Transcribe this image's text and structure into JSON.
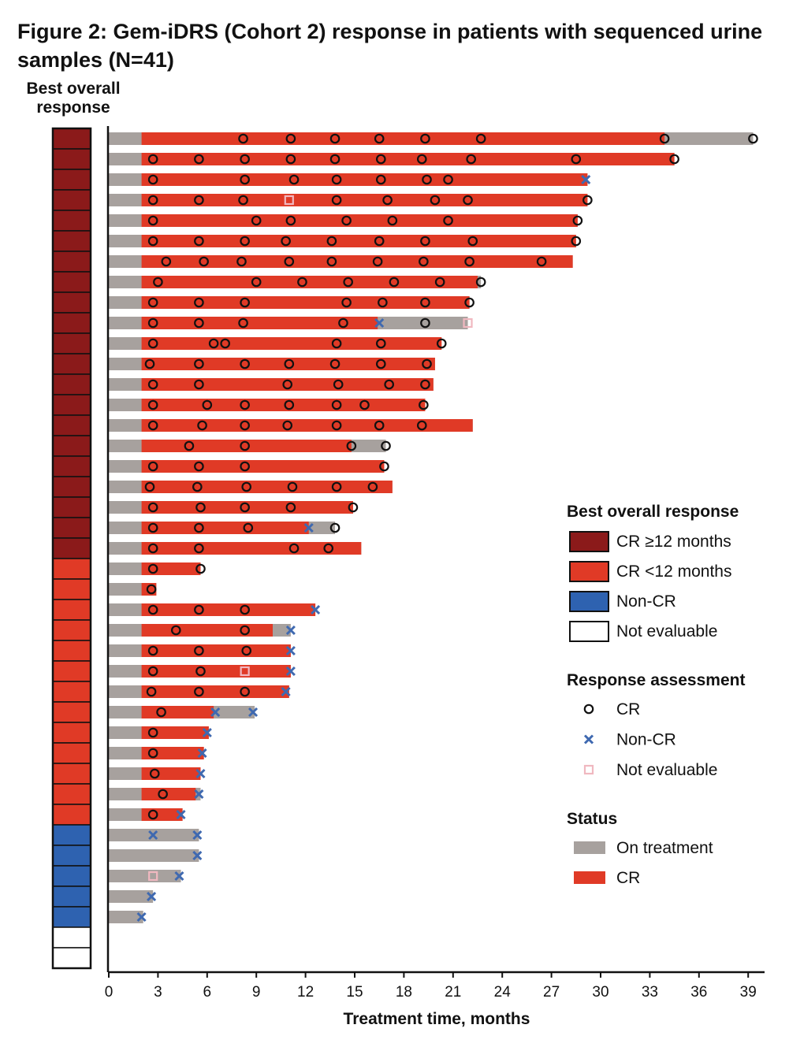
{
  "title": "Figure 2: Gem-iDRS (Cohort 2) response in patients with sequenced urine samples (N=41)",
  "bor_heading": [
    "Best overall",
    "response"
  ],
  "colors": {
    "cr_12plus": "#8b1a1a",
    "cr_under12": "#e03a26",
    "non_cr": "#2e62b0",
    "not_evaluable": "#ffffff",
    "on_treatment": "#a7a19e",
    "cr_status": "#e03a26",
    "marker_cr": "#111111",
    "marker_noncr": "#3f69b0",
    "marker_ne": "#f0b8c0"
  },
  "chart_data": {
    "type": "swimmer",
    "title": "Figure 2: Gem-iDRS (Cohort 2) response in patients with sequenced urine samples (N=41)",
    "xlabel": "Treatment time, months",
    "xlim": [
      0,
      40
    ],
    "xticks": [
      0,
      3,
      6,
      9,
      12,
      15,
      18,
      21,
      24,
      27,
      30,
      33,
      36,
      39
    ],
    "legend": {
      "best_overall_response": {
        "title": "Best overall response",
        "items": [
          {
            "label": "CR ≥12 months",
            "color": "#8b1a1a"
          },
          {
            "label": "CR <12 months",
            "color": "#e03a26"
          },
          {
            "label": "Non-CR",
            "color": "#2e62b0"
          },
          {
            "label": "Not evaluable",
            "color": "#ffffff"
          }
        ]
      },
      "response_assessment": {
        "title": "Response assessment",
        "items": [
          {
            "label": "CR",
            "marker": "circle"
          },
          {
            "label": "Non-CR",
            "marker": "x"
          },
          {
            "label": "Not evaluable",
            "marker": "square"
          }
        ]
      },
      "status": {
        "title": "Status",
        "items": [
          {
            "label": "On treatment",
            "color": "#a7a19e"
          },
          {
            "label": "CR",
            "color": "#e03a26"
          }
        ]
      },
      "placement": "right"
    },
    "patients": [
      {
        "bor": "CR12",
        "duration": 39.3,
        "cr": [
          2.0,
          33.9
        ],
        "markers": [
          [
            "cr",
            8.2
          ],
          [
            "cr",
            11.1
          ],
          [
            "cr",
            13.8
          ],
          [
            "cr",
            16.5
          ],
          [
            "cr",
            19.3
          ],
          [
            "cr",
            22.7
          ],
          [
            "cr",
            33.9
          ],
          [
            "cr",
            39.3
          ]
        ]
      },
      {
        "bor": "CR12",
        "duration": 34.5,
        "cr": [
          2.0,
          34.5
        ],
        "markers": [
          [
            "cr",
            2.7
          ],
          [
            "cr",
            5.5
          ],
          [
            "cr",
            8.3
          ],
          [
            "cr",
            11.1
          ],
          [
            "cr",
            13.8
          ],
          [
            "cr",
            16.6
          ],
          [
            "cr",
            19.1
          ],
          [
            "cr",
            22.1
          ],
          [
            "cr",
            28.5
          ],
          [
            "cr",
            34.5
          ]
        ]
      },
      {
        "bor": "CR12",
        "duration": 29.2,
        "cr": [
          2.0,
          29.2
        ],
        "markers": [
          [
            "cr",
            2.7
          ],
          [
            "cr",
            8.3
          ],
          [
            "cr",
            11.3
          ],
          [
            "cr",
            13.9
          ],
          [
            "cr",
            16.6
          ],
          [
            "cr",
            19.4
          ],
          [
            "cr",
            20.7
          ],
          [
            "x",
            29.1
          ]
        ]
      },
      {
        "bor": "CR12",
        "duration": 29.2,
        "cr": [
          2.0,
          29.2
        ],
        "markers": [
          [
            "cr",
            2.7
          ],
          [
            "cr",
            5.5
          ],
          [
            "cr",
            8.2
          ],
          [
            "sq",
            11.0
          ],
          [
            "cr",
            13.9
          ],
          [
            "cr",
            17.0
          ],
          [
            "cr",
            19.9
          ],
          [
            "cr",
            21.9
          ],
          [
            "cr",
            29.2
          ]
        ]
      },
      {
        "bor": "CR12",
        "duration": 28.6,
        "cr": [
          2.0,
          28.6
        ],
        "markers": [
          [
            "cr",
            2.7
          ],
          [
            "cr",
            9.0
          ],
          [
            "cr",
            11.1
          ],
          [
            "cr",
            14.5
          ],
          [
            "cr",
            17.3
          ],
          [
            "cr",
            20.7
          ],
          [
            "cr",
            28.6
          ]
        ]
      },
      {
        "bor": "CR12",
        "duration": 28.5,
        "cr": [
          2.0,
          28.5
        ],
        "markers": [
          [
            "cr",
            2.7
          ],
          [
            "cr",
            5.5
          ],
          [
            "cr",
            8.3
          ],
          [
            "cr",
            10.8
          ],
          [
            "cr",
            13.6
          ],
          [
            "cr",
            16.5
          ],
          [
            "cr",
            19.3
          ],
          [
            "cr",
            22.2
          ],
          [
            "cr",
            28.5
          ]
        ]
      },
      {
        "bor": "CR12",
        "duration": 28.3,
        "cr": [
          2.0,
          28.3
        ],
        "markers": [
          [
            "cr",
            3.5
          ],
          [
            "cr",
            5.8
          ],
          [
            "cr",
            8.1
          ],
          [
            "cr",
            11.0
          ],
          [
            "cr",
            13.6
          ],
          [
            "cr",
            16.4
          ],
          [
            "cr",
            19.2
          ],
          [
            "cr",
            22.0
          ],
          [
            "cr",
            26.4
          ]
        ]
      },
      {
        "bor": "CR12",
        "duration": 22.7,
        "cr": [
          2.0,
          22.5
        ],
        "markers": [
          [
            "cr",
            3.0
          ],
          [
            "cr",
            9.0
          ],
          [
            "cr",
            11.8
          ],
          [
            "cr",
            14.6
          ],
          [
            "cr",
            17.4
          ],
          [
            "cr",
            20.2
          ],
          [
            "cr",
            22.7
          ]
        ]
      },
      {
        "bor": "CR12",
        "duration": 22.0,
        "cr": [
          2.0,
          22.0
        ],
        "markers": [
          [
            "cr",
            2.7
          ],
          [
            "cr",
            5.5
          ],
          [
            "cr",
            8.3
          ],
          [
            "cr",
            14.5
          ],
          [
            "cr",
            16.7
          ],
          [
            "cr",
            19.3
          ],
          [
            "cr",
            22.0
          ]
        ]
      },
      {
        "bor": "CR12",
        "duration": 21.9,
        "cr": [
          2.0,
          16.4
        ],
        "markers": [
          [
            "cr",
            2.7
          ],
          [
            "cr",
            5.5
          ],
          [
            "cr",
            8.2
          ],
          [
            "cr",
            14.3
          ],
          [
            "x",
            16.5
          ],
          [
            "cr",
            19.3
          ],
          [
            "sq",
            21.9
          ]
        ]
      },
      {
        "bor": "CR12",
        "duration": 20.3,
        "cr": [
          2.0,
          20.3
        ],
        "markers": [
          [
            "cr",
            2.7
          ],
          [
            "cr",
            6.4
          ],
          [
            "cr",
            7.1
          ],
          [
            "cr",
            13.9
          ],
          [
            "cr",
            16.6
          ],
          [
            "cr",
            20.3
          ]
        ]
      },
      {
        "bor": "CR12",
        "duration": 19.9,
        "cr": [
          2.0,
          19.9
        ],
        "markers": [
          [
            "cr",
            2.5
          ],
          [
            "cr",
            5.5
          ],
          [
            "cr",
            8.3
          ],
          [
            "cr",
            11.0
          ],
          [
            "cr",
            13.8
          ],
          [
            "cr",
            16.6
          ],
          [
            "cr",
            19.4
          ]
        ]
      },
      {
        "bor": "CR12",
        "duration": 19.8,
        "cr": [
          2.0,
          19.8
        ],
        "markers": [
          [
            "cr",
            2.7
          ],
          [
            "cr",
            5.5
          ],
          [
            "cr",
            10.9
          ],
          [
            "cr",
            14.0
          ],
          [
            "cr",
            17.1
          ],
          [
            "cr",
            19.3
          ]
        ]
      },
      {
        "bor": "CR12",
        "duration": 19.3,
        "cr": [
          2.0,
          19.3
        ],
        "markers": [
          [
            "cr",
            2.7
          ],
          [
            "cr",
            6.0
          ],
          [
            "cr",
            8.3
          ],
          [
            "cr",
            11.0
          ],
          [
            "cr",
            13.9
          ],
          [
            "cr",
            15.6
          ],
          [
            "cr",
            19.2
          ]
        ]
      },
      {
        "bor": "CR12",
        "duration": 22.2,
        "cr": [
          2.0,
          22.2
        ],
        "markers": [
          [
            "cr",
            2.7
          ],
          [
            "cr",
            5.7
          ],
          [
            "cr",
            8.3
          ],
          [
            "cr",
            10.9
          ],
          [
            "cr",
            13.9
          ],
          [
            "cr",
            16.5
          ],
          [
            "cr",
            19.1
          ]
        ]
      },
      {
        "bor": "CR12",
        "duration": 16.9,
        "cr": [
          2.0,
          14.8
        ],
        "markers": [
          [
            "cr",
            4.9
          ],
          [
            "cr",
            8.3
          ],
          [
            "cr",
            14.8
          ],
          [
            "cr",
            16.9
          ]
        ]
      },
      {
        "bor": "CR12",
        "duration": 16.8,
        "cr": [
          2.0,
          16.8
        ],
        "markers": [
          [
            "cr",
            2.7
          ],
          [
            "cr",
            5.5
          ],
          [
            "cr",
            8.3
          ],
          [
            "cr",
            16.8
          ]
        ]
      },
      {
        "bor": "CR12",
        "duration": 17.3,
        "cr": [
          2.0,
          17.3
        ],
        "markers": [
          [
            "cr",
            2.5
          ],
          [
            "cr",
            5.4
          ],
          [
            "cr",
            8.4
          ],
          [
            "cr",
            11.2
          ],
          [
            "cr",
            13.9
          ],
          [
            "cr",
            16.1
          ]
        ]
      },
      {
        "bor": "CR12",
        "duration": 14.9,
        "cr": [
          2.0,
          14.9
        ],
        "markers": [
          [
            "cr",
            2.7
          ],
          [
            "cr",
            5.6
          ],
          [
            "cr",
            8.3
          ],
          [
            "cr",
            11.1
          ],
          [
            "cr",
            14.9
          ]
        ]
      },
      {
        "bor": "CR12",
        "duration": 13.8,
        "cr": [
          2.0,
          12.2
        ],
        "markers": [
          [
            "cr",
            2.7
          ],
          [
            "cr",
            5.5
          ],
          [
            "cr",
            8.5
          ],
          [
            "x",
            12.2
          ],
          [
            "cr",
            13.8
          ]
        ]
      },
      {
        "bor": "CR12",
        "duration": 15.4,
        "cr": [
          2.0,
          15.4
        ],
        "markers": [
          [
            "cr",
            2.7
          ],
          [
            "cr",
            5.5
          ],
          [
            "cr",
            11.3
          ],
          [
            "cr",
            13.4
          ]
        ]
      },
      {
        "bor": "CR",
        "duration": 5.6,
        "cr": [
          2.0,
          5.6
        ],
        "markers": [
          [
            "cr",
            2.7
          ],
          [
            "cr",
            5.6
          ]
        ]
      },
      {
        "bor": "CR",
        "duration": 2.9,
        "cr": [
          2.0,
          2.9
        ],
        "markers": [
          [
            "cr",
            2.6
          ]
        ]
      },
      {
        "bor": "CR",
        "duration": 12.6,
        "cr": [
          2.0,
          12.6
        ],
        "markers": [
          [
            "cr",
            2.7
          ],
          [
            "cr",
            5.5
          ],
          [
            "cr",
            8.3
          ],
          [
            "x",
            12.6
          ]
        ]
      },
      {
        "bor": "CR",
        "duration": 11.1,
        "cr": [
          2.0,
          10.0
        ],
        "markers": [
          [
            "cr",
            4.1
          ],
          [
            "cr",
            8.3
          ],
          [
            "x",
            11.1
          ]
        ]
      },
      {
        "bor": "CR",
        "duration": 11.1,
        "cr": [
          2.0,
          11.1
        ],
        "markers": [
          [
            "cr",
            2.7
          ],
          [
            "cr",
            5.5
          ],
          [
            "cr",
            8.4
          ],
          [
            "x",
            11.1
          ]
        ]
      },
      {
        "bor": "CR",
        "duration": 11.1,
        "cr": [
          2.0,
          11.1
        ],
        "markers": [
          [
            "cr",
            2.7
          ],
          [
            "cr",
            5.6
          ],
          [
            "sq",
            8.3
          ],
          [
            "x",
            11.1
          ]
        ]
      },
      {
        "bor": "CR",
        "duration": 11.0,
        "cr": [
          2.0,
          11.0
        ],
        "markers": [
          [
            "cr",
            2.6
          ],
          [
            "cr",
            5.5
          ],
          [
            "cr",
            8.3
          ],
          [
            "x",
            10.8
          ]
        ]
      },
      {
        "bor": "CR",
        "duration": 8.9,
        "cr": [
          2.0,
          6.4
        ],
        "markers": [
          [
            "cr",
            3.2
          ],
          [
            "x",
            6.5
          ],
          [
            "x",
            8.8
          ]
        ]
      },
      {
        "bor": "CR",
        "duration": 6.1,
        "cr": [
          2.0,
          6.1
        ],
        "markers": [
          [
            "cr",
            2.7
          ],
          [
            "x",
            6.0
          ]
        ]
      },
      {
        "bor": "CR",
        "duration": 5.8,
        "cr": [
          2.0,
          5.8
        ],
        "markers": [
          [
            "cr",
            2.7
          ],
          [
            "x",
            5.7
          ]
        ]
      },
      {
        "bor": "CR",
        "duration": 5.6,
        "cr": [
          2.0,
          5.6
        ],
        "markers": [
          [
            "cr",
            2.8
          ],
          [
            "x",
            5.6
          ]
        ]
      },
      {
        "bor": "CR",
        "duration": 5.6,
        "cr": [
          2.0,
          5.3
        ],
        "markers": [
          [
            "cr",
            3.3
          ],
          [
            "x",
            5.5
          ]
        ]
      },
      {
        "bor": "CR",
        "duration": 4.5,
        "cr": [
          2.0,
          4.5
        ],
        "markers": [
          [
            "cr",
            2.7
          ],
          [
            "x",
            4.4
          ]
        ]
      },
      {
        "bor": "NonCR",
        "duration": 5.5,
        "cr": null,
        "markers": [
          [
            "x",
            2.7
          ],
          [
            "x",
            5.4
          ]
        ]
      },
      {
        "bor": "NonCR",
        "duration": 5.5,
        "cr": null,
        "markers": [
          [
            "x",
            5.4
          ]
        ]
      },
      {
        "bor": "NonCR",
        "duration": 4.4,
        "cr": null,
        "markers": [
          [
            "sq",
            2.7
          ],
          [
            "x",
            4.3
          ]
        ]
      },
      {
        "bor": "NonCR",
        "duration": 2.7,
        "cr": null,
        "markers": [
          [
            "x",
            2.6
          ]
        ]
      },
      {
        "bor": "NonCR",
        "duration": 2.1,
        "cr": null,
        "markers": [
          [
            "x",
            2.0
          ]
        ]
      },
      {
        "bor": "NE",
        "duration": null,
        "cr": null,
        "markers": []
      },
      {
        "bor": "NE",
        "duration": null,
        "cr": null,
        "markers": []
      }
    ]
  }
}
